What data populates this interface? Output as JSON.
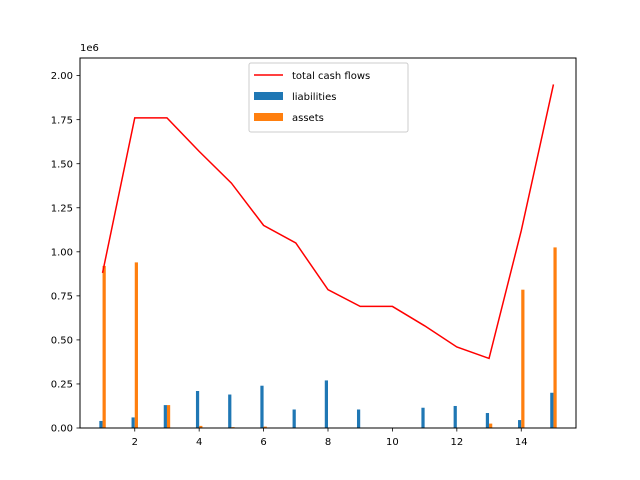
{
  "chart_data": {
    "type": "bar",
    "x": [
      1,
      2,
      3,
      4,
      5,
      6,
      7,
      8,
      9,
      10,
      11,
      12,
      13,
      14,
      15
    ],
    "offset_label": "1e6",
    "xlim": [
      0.3,
      15.7
    ],
    "ylim": [
      0,
      2.1
    ],
    "xticks": [
      2,
      4,
      6,
      8,
      10,
      12,
      14
    ],
    "xtick_labels": [
      "2",
      "4",
      "6",
      "8",
      "10",
      "12",
      "14"
    ],
    "yticks": [
      0,
      0.25,
      0.5,
      0.75,
      1.0,
      1.25,
      1.5,
      1.75,
      2.0
    ],
    "ytick_labels": [
      "0.00",
      "0.25",
      "0.50",
      "0.75",
      "1.00",
      "1.25",
      "1.50",
      "1.75",
      "2.00"
    ],
    "legend_position": "top-center",
    "grid": false,
    "series": [
      {
        "name": "total cash flows",
        "kind": "line",
        "color": "#ff0000",
        "values": [
          0.88,
          1.76,
          1.76,
          1.57,
          1.39,
          1.15,
          1.05,
          0.785,
          0.69,
          0.69,
          0.58,
          0.46,
          0.395,
          1.12,
          1.95
        ]
      },
      {
        "name": "liabilities",
        "kind": "bar",
        "color": "#1f77b4",
        "values": [
          0.04,
          0.06,
          0.13,
          0.21,
          0.19,
          0.24,
          0.105,
          0.27,
          0.105,
          0.0,
          0.115,
          0.125,
          0.085,
          0.045,
          0.2
        ]
      },
      {
        "name": "assets",
        "kind": "bar",
        "color": "#ff7f0e",
        "values": [
          0.92,
          0.94,
          0.13,
          0.012,
          0.005,
          0.008,
          0.0,
          0.0,
          0.0,
          0.0,
          0.0,
          0.0,
          0.025,
          0.785,
          1.025
        ]
      }
    ]
  }
}
